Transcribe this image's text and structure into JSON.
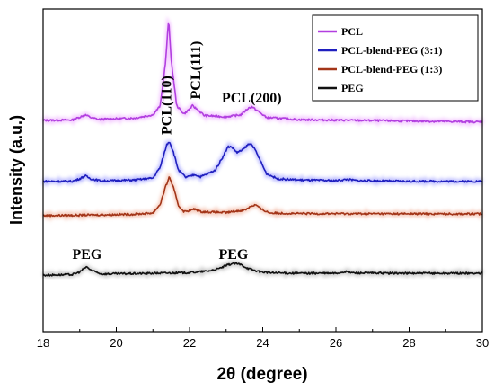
{
  "chart_data": {
    "type": "line",
    "xlabel": "2θ (degree)",
    "ylabel": "Intensity (a.u.)",
    "xlim": [
      18,
      30
    ],
    "x_ticks": [
      "18",
      "20",
      "22",
      "24",
      "26",
      "28",
      "30"
    ],
    "y_ticks_shown": false,
    "legend_position": "top-right",
    "series": [
      {
        "name": "PCL",
        "color": "#b23fe0",
        "glow": "#f0b8ff",
        "baseline": 0.655,
        "noise": 0.003,
        "points": [
          [
            18.0,
            0.655
          ],
          [
            18.8,
            0.656
          ],
          [
            19.0,
            0.665
          ],
          [
            19.15,
            0.672
          ],
          [
            19.3,
            0.664
          ],
          [
            19.5,
            0.658
          ],
          [
            20.5,
            0.662
          ],
          [
            21.0,
            0.672
          ],
          [
            21.2,
            0.7
          ],
          [
            21.35,
            0.84
          ],
          [
            21.43,
            0.97
          ],
          [
            21.5,
            0.84
          ],
          [
            21.65,
            0.7
          ],
          [
            21.85,
            0.675
          ],
          [
            22.0,
            0.69
          ],
          [
            22.08,
            0.7
          ],
          [
            22.2,
            0.69
          ],
          [
            22.4,
            0.67
          ],
          [
            23.0,
            0.666
          ],
          [
            23.4,
            0.672
          ],
          [
            23.6,
            0.692
          ],
          [
            23.7,
            0.697
          ],
          [
            23.85,
            0.685
          ],
          [
            24.1,
            0.664
          ],
          [
            25.0,
            0.657
          ],
          [
            30.0,
            0.65
          ]
        ]
      },
      {
        "name": "PCL-blend-PEG (3:1)",
        "color": "#1f1fbf",
        "glow": "#a8a8ff",
        "baseline": 0.465,
        "noise": 0.003,
        "points": [
          [
            18.0,
            0.466
          ],
          [
            18.8,
            0.466
          ],
          [
            19.0,
            0.474
          ],
          [
            19.15,
            0.483
          ],
          [
            19.3,
            0.474
          ],
          [
            19.6,
            0.467
          ],
          [
            20.5,
            0.47
          ],
          [
            21.0,
            0.476
          ],
          [
            21.2,
            0.51
          ],
          [
            21.38,
            0.58
          ],
          [
            21.45,
            0.59
          ],
          [
            21.55,
            0.56
          ],
          [
            21.7,
            0.5
          ],
          [
            21.9,
            0.478
          ],
          [
            22.15,
            0.487
          ],
          [
            22.3,
            0.48
          ],
          [
            22.45,
            0.487
          ],
          [
            22.7,
            0.5
          ],
          [
            22.9,
            0.54
          ],
          [
            23.05,
            0.573
          ],
          [
            23.15,
            0.573
          ],
          [
            23.3,
            0.555
          ],
          [
            23.45,
            0.563
          ],
          [
            23.6,
            0.58
          ],
          [
            23.7,
            0.582
          ],
          [
            23.85,
            0.55
          ],
          [
            24.1,
            0.49
          ],
          [
            24.4,
            0.474
          ],
          [
            25.0,
            0.47
          ],
          [
            26.0,
            0.468
          ],
          [
            26.3,
            0.472
          ],
          [
            26.6,
            0.468
          ],
          [
            28.0,
            0.466
          ],
          [
            30.0,
            0.466
          ]
        ]
      },
      {
        "name": "PCL-blend-PEG (1:3)",
        "color": "#a33518",
        "glow": "#f3b9a5",
        "baseline": 0.36,
        "noise": 0.003,
        "points": [
          [
            18.0,
            0.36
          ],
          [
            19.0,
            0.361
          ],
          [
            20.5,
            0.364
          ],
          [
            21.0,
            0.368
          ],
          [
            21.2,
            0.395
          ],
          [
            21.35,
            0.45
          ],
          [
            21.45,
            0.48
          ],
          [
            21.55,
            0.45
          ],
          [
            21.7,
            0.39
          ],
          [
            21.85,
            0.372
          ],
          [
            22.05,
            0.377
          ],
          [
            22.15,
            0.38
          ],
          [
            22.3,
            0.372
          ],
          [
            23.0,
            0.369
          ],
          [
            23.5,
            0.377
          ],
          [
            23.7,
            0.39
          ],
          [
            23.82,
            0.393
          ],
          [
            23.95,
            0.38
          ],
          [
            24.2,
            0.368
          ],
          [
            25.0,
            0.366
          ],
          [
            30.0,
            0.365
          ]
        ]
      },
      {
        "name": "PEG",
        "color": "#111111",
        "glow": "#bbbbbb",
        "baseline": 0.175,
        "noise": 0.003,
        "points": [
          [
            18.0,
            0.175
          ],
          [
            18.8,
            0.177
          ],
          [
            19.0,
            0.185
          ],
          [
            19.18,
            0.201
          ],
          [
            19.35,
            0.188
          ],
          [
            19.6,
            0.179
          ],
          [
            20.5,
            0.18
          ],
          [
            21.0,
            0.181
          ],
          [
            22.0,
            0.183
          ],
          [
            22.5,
            0.188
          ],
          [
            22.8,
            0.195
          ],
          [
            23.0,
            0.205
          ],
          [
            23.2,
            0.212
          ],
          [
            23.4,
            0.208
          ],
          [
            23.6,
            0.196
          ],
          [
            23.9,
            0.186
          ],
          [
            24.3,
            0.182
          ],
          [
            25.0,
            0.181
          ],
          [
            26.0,
            0.181
          ],
          [
            26.25,
            0.186
          ],
          [
            26.5,
            0.182
          ],
          [
            28.0,
            0.181
          ],
          [
            30.0,
            0.181
          ]
        ]
      }
    ],
    "annotations": [
      {
        "text": "PCL(110)",
        "x": 21.35,
        "y": 0.61,
        "rotate": true
      },
      {
        "text": "PCL(111)",
        "x": 22.15,
        "y": 0.72,
        "rotate": true
      },
      {
        "text": "PCL(200)",
        "x": 23.7,
        "y": 0.71,
        "rotate": false
      },
      {
        "text": "PEG",
        "x": 19.2,
        "y": 0.225,
        "rotate": false
      },
      {
        "text": "PEG",
        "x": 23.2,
        "y": 0.225,
        "rotate": false
      }
    ]
  }
}
